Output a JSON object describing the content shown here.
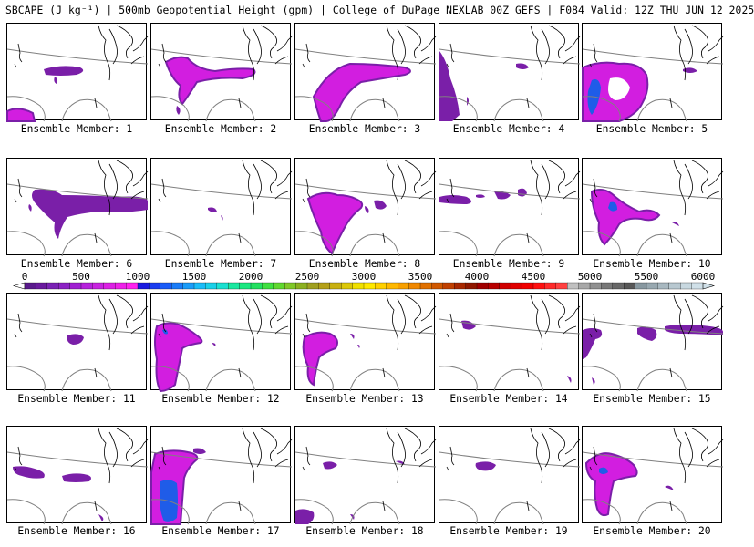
{
  "title": "SBCAPE (J kg⁻¹) | 500mb Geopotential Height (gpm) | College of DuPage NEXLAB 00Z GEFS | F084 Valid: 12Z THU JUN 12 2025",
  "colorbar": {
    "ticks": [
      "0",
      "500",
      "1000",
      "1500",
      "2000",
      "2500",
      "3000",
      "3500",
      "4000",
      "4500",
      "5000",
      "5500",
      "6000"
    ],
    "range": [
      0,
      6000
    ],
    "colors": [
      "#5a1a8c",
      "#6a1a9e",
      "#7a22b4",
      "#8c22c4",
      "#a020d2",
      "#b622dc",
      "#c824e0",
      "#dc22e4",
      "#ee22e8",
      "#ff22ee",
      "#1a1ae0",
      "#1a3cf0",
      "#1a5cf8",
      "#1a7cf8",
      "#1a9cf8",
      "#1abcf8",
      "#1ad0e8",
      "#1ae0d0",
      "#1ae8a0",
      "#1ae880",
      "#22e060",
      "#40e040",
      "#60d830",
      "#80c828",
      "#8cb020",
      "#a0a020",
      "#b4a018",
      "#c8b010",
      "#dcc808",
      "#f0e000",
      "#ffe800",
      "#ffd000",
      "#ffb800",
      "#f8a000",
      "#f08800",
      "#e07000",
      "#d05800",
      "#c04000",
      "#a82800",
      "#901800",
      "#a00000",
      "#b80000",
      "#d00000",
      "#e00000",
      "#f00000",
      "#ff1010",
      "#ff2a2a",
      "#ff4040",
      "#c0c0c0",
      "#a8a8a8",
      "#909090",
      "#787878",
      "#686868",
      "#585858",
      "#8898a0",
      "#98a8b0",
      "#a8b8c0",
      "#b8c8d0",
      "#c8d8e0",
      "#d0e0e8"
    ]
  },
  "panels": [
    {
      "label": "Ensemble Member: 1"
    },
    {
      "label": "Ensemble Member: 2"
    },
    {
      "label": "Ensemble Member: 3"
    },
    {
      "label": "Ensemble Member: 4"
    },
    {
      "label": "Ensemble Member: 5"
    },
    {
      "label": "Ensemble Member: 6"
    },
    {
      "label": "Ensemble Member: 7"
    },
    {
      "label": "Ensemble Member: 8"
    },
    {
      "label": "Ensemble Member: 9"
    },
    {
      "label": "Ensemble Member: 10"
    },
    {
      "label": "Ensemble Member: 11"
    },
    {
      "label": "Ensemble Member: 12"
    },
    {
      "label": "Ensemble Member: 13"
    },
    {
      "label": "Ensemble Member: 14"
    },
    {
      "label": "Ensemble Member: 15"
    },
    {
      "label": "Ensemble Member: 16"
    },
    {
      "label": "Ensemble Member: 17"
    },
    {
      "label": "Ensemble Member: 18"
    },
    {
      "label": "Ensemble Member: 19"
    },
    {
      "label": "Ensemble Member: 20"
    }
  ],
  "colors": {
    "contour": "#808080",
    "coast": "#000000",
    "cape_low": "#7a1fa8",
    "cape_mid": "#d21ee0",
    "cape_high": "#1f5ce8"
  }
}
